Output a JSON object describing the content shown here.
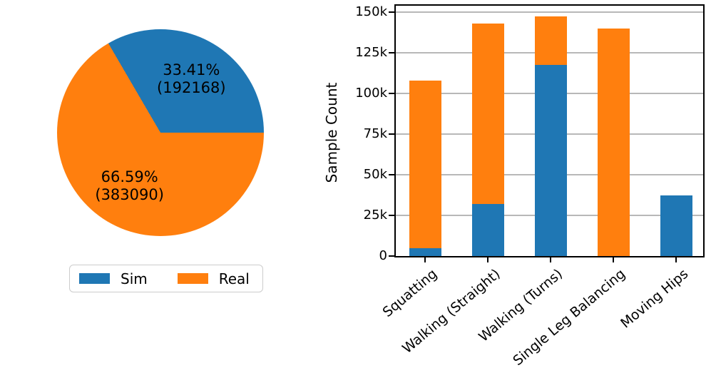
{
  "figure": {
    "background": "#ffffff"
  },
  "chart_data": [
    {
      "type": "pie",
      "labels": [
        "Sim",
        "Real"
      ],
      "values": [
        192168,
        383090
      ],
      "percent_labels": [
        "33.41%",
        "66.59%"
      ],
      "count_labels": [
        "(192168)",
        "(383090)"
      ],
      "colors": [
        "#1f77b4",
        "#ff7f0e"
      ],
      "start_angle_deg": 0,
      "direction": "counterclockwise",
      "label_distance": 0.6,
      "legend": {
        "position": "below-pie",
        "border_color": "#cccccc",
        "entries": [
          {
            "label": "Sim",
            "color": "#1f77b4"
          },
          {
            "label": "Real",
            "color": "#ff7f0e"
          }
        ]
      }
    },
    {
      "type": "bar",
      "stacked": true,
      "categories": [
        "Squatting",
        "Walking (Straight)",
        "Walking (Turns)",
        "Single Leg Balancing",
        "Moving Hips"
      ],
      "series": [
        {
          "name": "Sim",
          "color": "#1f77b4",
          "values": [
            5000,
            32000,
            117500,
            0,
            37500
          ]
        },
        {
          "name": "Real",
          "color": "#ff7f0e",
          "values": [
            103000,
            111000,
            30000,
            140000,
            0
          ]
        }
      ],
      "ylabel": "Sample Count",
      "xlabel": "",
      "ylim": [
        0,
        154000
      ],
      "yticks": [
        {
          "value": 0,
          "label": "0"
        },
        {
          "value": 25000,
          "label": "25k"
        },
        {
          "value": 50000,
          "label": "50k"
        },
        {
          "value": 75000,
          "label": "75k"
        },
        {
          "value": 100000,
          "label": "100k"
        },
        {
          "value": 125000,
          "label": "125k"
        },
        {
          "value": 150000,
          "label": "150k"
        }
      ],
      "grid": "horizontal-only",
      "grid_color": "#b8b8b8",
      "spine_color": "#000000",
      "xtick_rotation_deg": 40
    }
  ]
}
